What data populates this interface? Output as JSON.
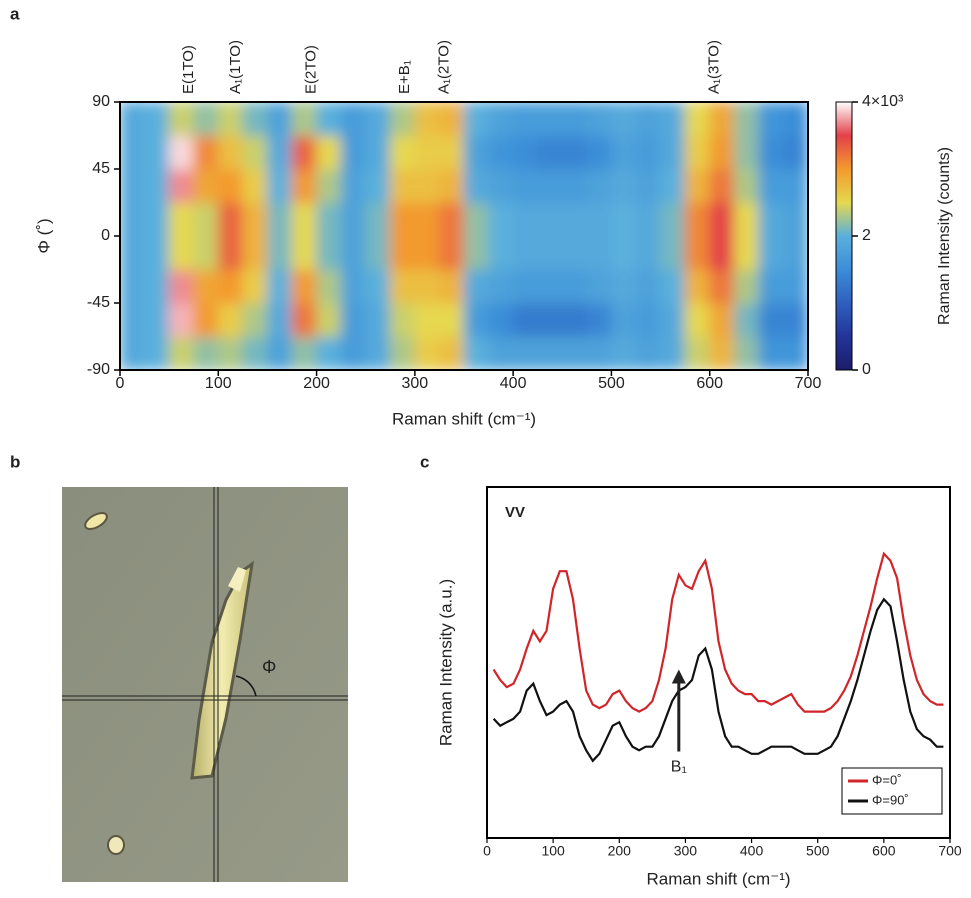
{
  "panel_labels": [
    "a",
    "b",
    "c"
  ],
  "micrograph": {
    "angle_label": "Φ"
  },
  "chart_data": [
    {
      "type": "heatmap",
      "xlabel": "Raman shift (cm⁻¹)",
      "ylabel": "Φ (˚)",
      "x_bins": [
        0,
        25,
        50,
        75,
        100,
        125,
        150,
        175,
        200,
        225,
        250,
        275,
        300,
        325,
        350,
        375,
        400,
        425,
        450,
        475,
        500,
        525,
        550,
        575,
        600,
        625,
        650,
        675,
        700
      ],
      "y_bins": [
        -90,
        -67.5,
        -45,
        -22.5,
        0,
        22.5,
        45,
        67.5,
        90
      ],
      "z": [
        [
          1900,
          2000,
          2400,
          2200,
          2300,
          2100,
          1800,
          2200,
          2000,
          1700,
          1900,
          2300,
          2600,
          2700,
          2000,
          1800,
          1800,
          1800,
          1800,
          1800,
          1900,
          1800,
          1900,
          2400,
          2800,
          2200,
          1600,
          1600
        ],
        [
          1900,
          2000,
          3800,
          3000,
          2600,
          2300,
          1900,
          3200,
          2400,
          1700,
          1900,
          2400,
          2500,
          2500,
          1700,
          1500,
          1300,
          1300,
          1300,
          1400,
          1800,
          1700,
          1900,
          2500,
          2900,
          2100,
          1400,
          1400
        ],
        [
          1900,
          2000,
          3700,
          2900,
          3000,
          2600,
          2000,
          3000,
          2300,
          1800,
          2000,
          2700,
          2700,
          2800,
          1900,
          1800,
          1700,
          1700,
          1700,
          1800,
          1900,
          1800,
          2000,
          2800,
          3200,
          2300,
          1700,
          1700
        ],
        [
          1900,
          2000,
          2500,
          2400,
          3300,
          2800,
          2100,
          2500,
          2100,
          1800,
          2100,
          3000,
          3000,
          3200,
          2200,
          2000,
          1900,
          1900,
          1900,
          1900,
          2000,
          1900,
          2100,
          3100,
          3500,
          2500,
          1900,
          1800
        ],
        [
          1900,
          2000,
          2500,
          2400,
          3300,
          2800,
          2100,
          2500,
          2100,
          1800,
          2100,
          3000,
          3000,
          3200,
          2200,
          2000,
          1900,
          1900,
          1900,
          1900,
          2000,
          1900,
          2100,
          3100,
          3500,
          2500,
          1900,
          1800
        ],
        [
          1900,
          2000,
          3700,
          2900,
          3000,
          2600,
          2000,
          3000,
          2300,
          1800,
          2000,
          2700,
          2700,
          2800,
          1900,
          1800,
          1700,
          1700,
          1700,
          1800,
          1900,
          1800,
          2000,
          2800,
          3200,
          2300,
          1700,
          1700
        ],
        [
          1900,
          2000,
          3900,
          3100,
          2700,
          2400,
          1900,
          3300,
          2500,
          1700,
          1900,
          2500,
          2600,
          2600,
          1800,
          1600,
          1500,
          1400,
          1400,
          1500,
          1800,
          1700,
          1900,
          2600,
          3000,
          2200,
          1500,
          1400
        ],
        [
          1900,
          2000,
          2400,
          2200,
          2400,
          2100,
          1800,
          2300,
          2000,
          1700,
          1900,
          2300,
          2700,
          2800,
          2000,
          1800,
          1700,
          1700,
          1700,
          1800,
          1900,
          1800,
          1900,
          2500,
          2900,
          2200,
          1600,
          1500
        ]
      ],
      "xlim": [
        0,
        700
      ],
      "ylim": [
        -90,
        90
      ],
      "xticks": [
        0,
        100,
        200,
        300,
        400,
        500,
        600,
        700
      ],
      "yticks": [
        -90,
        -45,
        0,
        45,
        90
      ],
      "colorscale": [
        "#1b1d6a",
        "#23349a",
        "#2f5fbf",
        "#3b8ed8",
        "#5ab0dc",
        "#e6d84f",
        "#f39a2f",
        "#e3404a",
        "#ffffff"
      ],
      "zlim": [
        0,
        4000
      ],
      "zticks": [
        0,
        {
          "value": 2000,
          "label": "2"
        },
        {
          "value": 4000,
          "label": "4×10³"
        }
      ],
      "colorbar_label": "Raman Intensity (counts)",
      "peak_labels": [
        {
          "text": "E(1TO)",
          "x": 70
        },
        {
          "text": "A₁(1TO)",
          "x": 118
        },
        {
          "text": "E(2TO)",
          "x": 195
        },
        {
          "text": "E+B₁",
          "x": 290
        },
        {
          "text": "A₁(2TO)",
          "x": 330
        },
        {
          "text": "A₁(3TO)",
          "x": 605
        }
      ]
    },
    {
      "type": "line",
      "xlabel": "Raman shift (cm⁻¹)",
      "ylabel": "Raman Intensity (a.u.)",
      "annotation": "VV",
      "x": [
        10,
        20,
        30,
        40,
        50,
        60,
        70,
        80,
        90,
        100,
        110,
        120,
        130,
        140,
        150,
        160,
        170,
        180,
        190,
        200,
        210,
        220,
        230,
        240,
        250,
        260,
        270,
        280,
        290,
        300,
        310,
        320,
        330,
        340,
        350,
        360,
        370,
        380,
        390,
        400,
        410,
        420,
        430,
        440,
        450,
        460,
        470,
        480,
        490,
        500,
        510,
        520,
        530,
        540,
        550,
        560,
        570,
        580,
        590,
        600,
        610,
        620,
        630,
        640,
        650,
        660,
        670,
        680,
        690
      ],
      "series": [
        {
          "name": "Φ=0˚",
          "color": "#d0262a",
          "values": [
            4.8,
            4.5,
            4.3,
            4.4,
            4.8,
            5.4,
            5.9,
            5.6,
            5.9,
            7.1,
            7.6,
            7.6,
            6.8,
            5.4,
            4.2,
            3.8,
            3.7,
            3.8,
            4.1,
            4.2,
            3.9,
            3.7,
            3.6,
            3.7,
            3.9,
            4.5,
            5.4,
            6.8,
            7.5,
            7.2,
            7.1,
            7.6,
            7.9,
            7.1,
            5.6,
            4.8,
            4.4,
            4.2,
            4.1,
            4.1,
            3.9,
            3.9,
            3.8,
            3.9,
            4.0,
            4.1,
            3.8,
            3.6,
            3.6,
            3.6,
            3.6,
            3.7,
            3.9,
            4.2,
            4.6,
            5.2,
            5.9,
            6.6,
            7.4,
            8.1,
            7.9,
            7.4,
            6.2,
            5.2,
            4.5,
            4.1,
            3.9,
            3.8,
            3.8
          ]
        },
        {
          "name": "Φ=90˚",
          "color": "#111111",
          "values": [
            3.4,
            3.2,
            3.3,
            3.4,
            3.6,
            4.2,
            4.4,
            3.9,
            3.5,
            3.6,
            3.8,
            3.9,
            3.6,
            2.9,
            2.5,
            2.2,
            2.4,
            2.8,
            3.2,
            3.3,
            2.9,
            2.6,
            2.5,
            2.6,
            2.6,
            2.9,
            3.4,
            3.9,
            4.2,
            4.3,
            4.5,
            5.2,
            5.4,
            4.8,
            3.6,
            2.9,
            2.6,
            2.6,
            2.5,
            2.4,
            2.4,
            2.5,
            2.6,
            2.6,
            2.6,
            2.6,
            2.5,
            2.4,
            2.4,
            2.4,
            2.5,
            2.6,
            2.9,
            3.4,
            3.9,
            4.5,
            5.2,
            5.9,
            6.5,
            6.8,
            6.6,
            5.6,
            4.5,
            3.6,
            3.1,
            2.9,
            2.8,
            2.6,
            2.6
          ]
        }
      ],
      "xlim": [
        0,
        700
      ],
      "ylim": [
        0,
        10
      ],
      "xticks": [
        0,
        100,
        200,
        300,
        400,
        500,
        600,
        700
      ],
      "arrow": {
        "text": "B₁",
        "x": 290,
        "y": 4.8
      },
      "legend": "lower right"
    }
  ]
}
